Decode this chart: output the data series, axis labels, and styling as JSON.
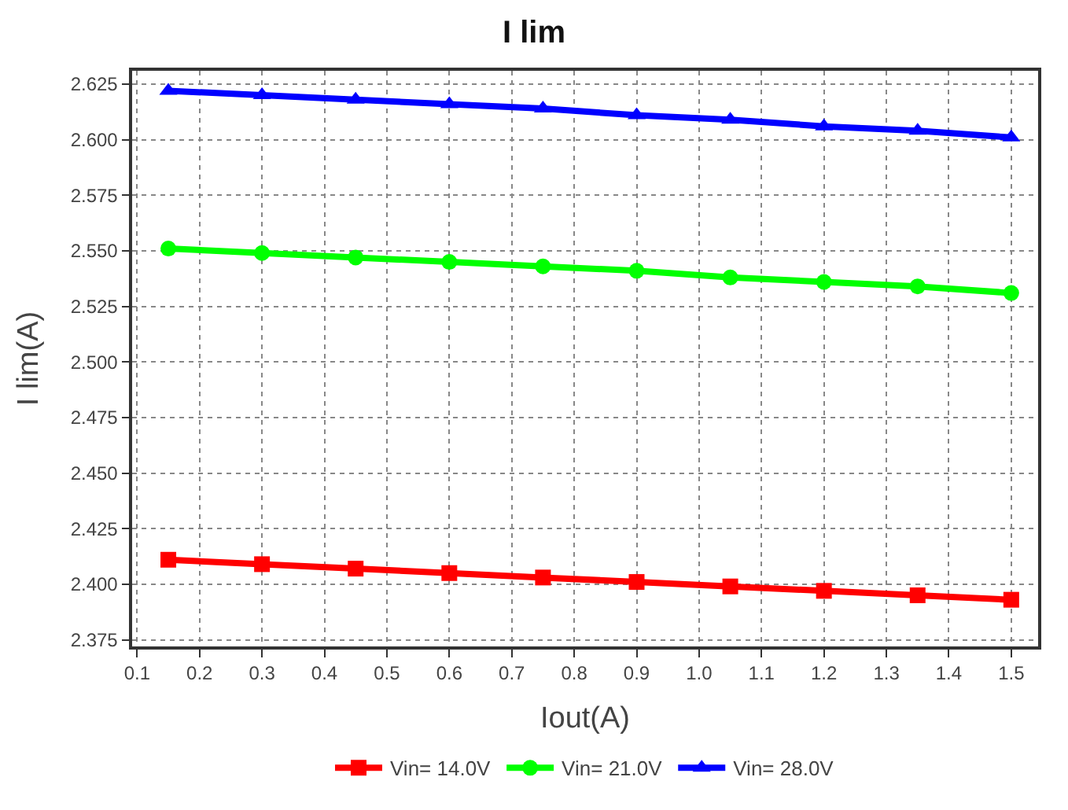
{
  "chart_data": {
    "type": "line",
    "title": "I lim",
    "xlabel": "Iout(A)",
    "ylabel": "I lim(A)",
    "x": [
      0.15,
      0.3,
      0.45,
      0.6,
      0.75,
      0.9,
      1.05,
      1.2,
      1.35,
      1.5
    ],
    "series": [
      {
        "name": "Vin= 14.0V",
        "color": "#ff0000",
        "marker": "square",
        "values": [
          2.411,
          2.409,
          2.407,
          2.405,
          2.403,
          2.401,
          2.399,
          2.397,
          2.395,
          2.393
        ]
      },
      {
        "name": "Vin= 21.0V",
        "color": "#00ff00",
        "marker": "circle",
        "values": [
          2.551,
          2.549,
          2.547,
          2.545,
          2.543,
          2.541,
          2.538,
          2.536,
          2.534,
          2.531
        ]
      },
      {
        "name": "Vin= 28.0V",
        "color": "#0000ff",
        "marker": "triangle",
        "values": [
          2.622,
          2.62,
          2.618,
          2.616,
          2.614,
          2.611,
          2.609,
          2.606,
          2.604,
          2.601
        ]
      }
    ],
    "xlim": [
      0.092,
      1.543
    ],
    "xticks": [
      {
        "value": 0.1,
        "label": "0.1"
      },
      {
        "value": 0.2,
        "label": "0.2"
      },
      {
        "value": 0.3,
        "label": "0.3"
      },
      {
        "value": 0.4,
        "label": "0.4"
      },
      {
        "value": 0.5,
        "label": "0.5"
      },
      {
        "value": 0.6,
        "label": "0.6"
      },
      {
        "value": 0.7,
        "label": "0.7"
      },
      {
        "value": 0.8,
        "label": "0.8"
      },
      {
        "value": 0.9,
        "label": "0.9"
      },
      {
        "value": 1.0,
        "label": "1.0"
      },
      {
        "value": 1.1,
        "label": "1.1"
      },
      {
        "value": 1.2,
        "label": "1.2"
      },
      {
        "value": 1.3,
        "label": "1.3"
      },
      {
        "value": 1.4,
        "label": "1.4"
      },
      {
        "value": 1.5,
        "label": "1.5"
      }
    ],
    "ylim": [
      2.372,
      2.631
    ],
    "yticks": [
      {
        "value": 2.375,
        "label": "2.375"
      },
      {
        "value": 2.4,
        "label": "2.400"
      },
      {
        "value": 2.425,
        "label": "2.425"
      },
      {
        "value": 2.45,
        "label": "2.450"
      },
      {
        "value": 2.475,
        "label": "2.475"
      },
      {
        "value": 2.5,
        "label": "2.500"
      },
      {
        "value": 2.525,
        "label": "2.525"
      },
      {
        "value": 2.55,
        "label": "2.550"
      },
      {
        "value": 2.575,
        "label": "2.575"
      },
      {
        "value": 2.6,
        "label": "2.600"
      },
      {
        "value": 2.625,
        "label": "2.625"
      }
    ],
    "grid": true,
    "legend": "bottom",
    "line_style": "solid"
  }
}
